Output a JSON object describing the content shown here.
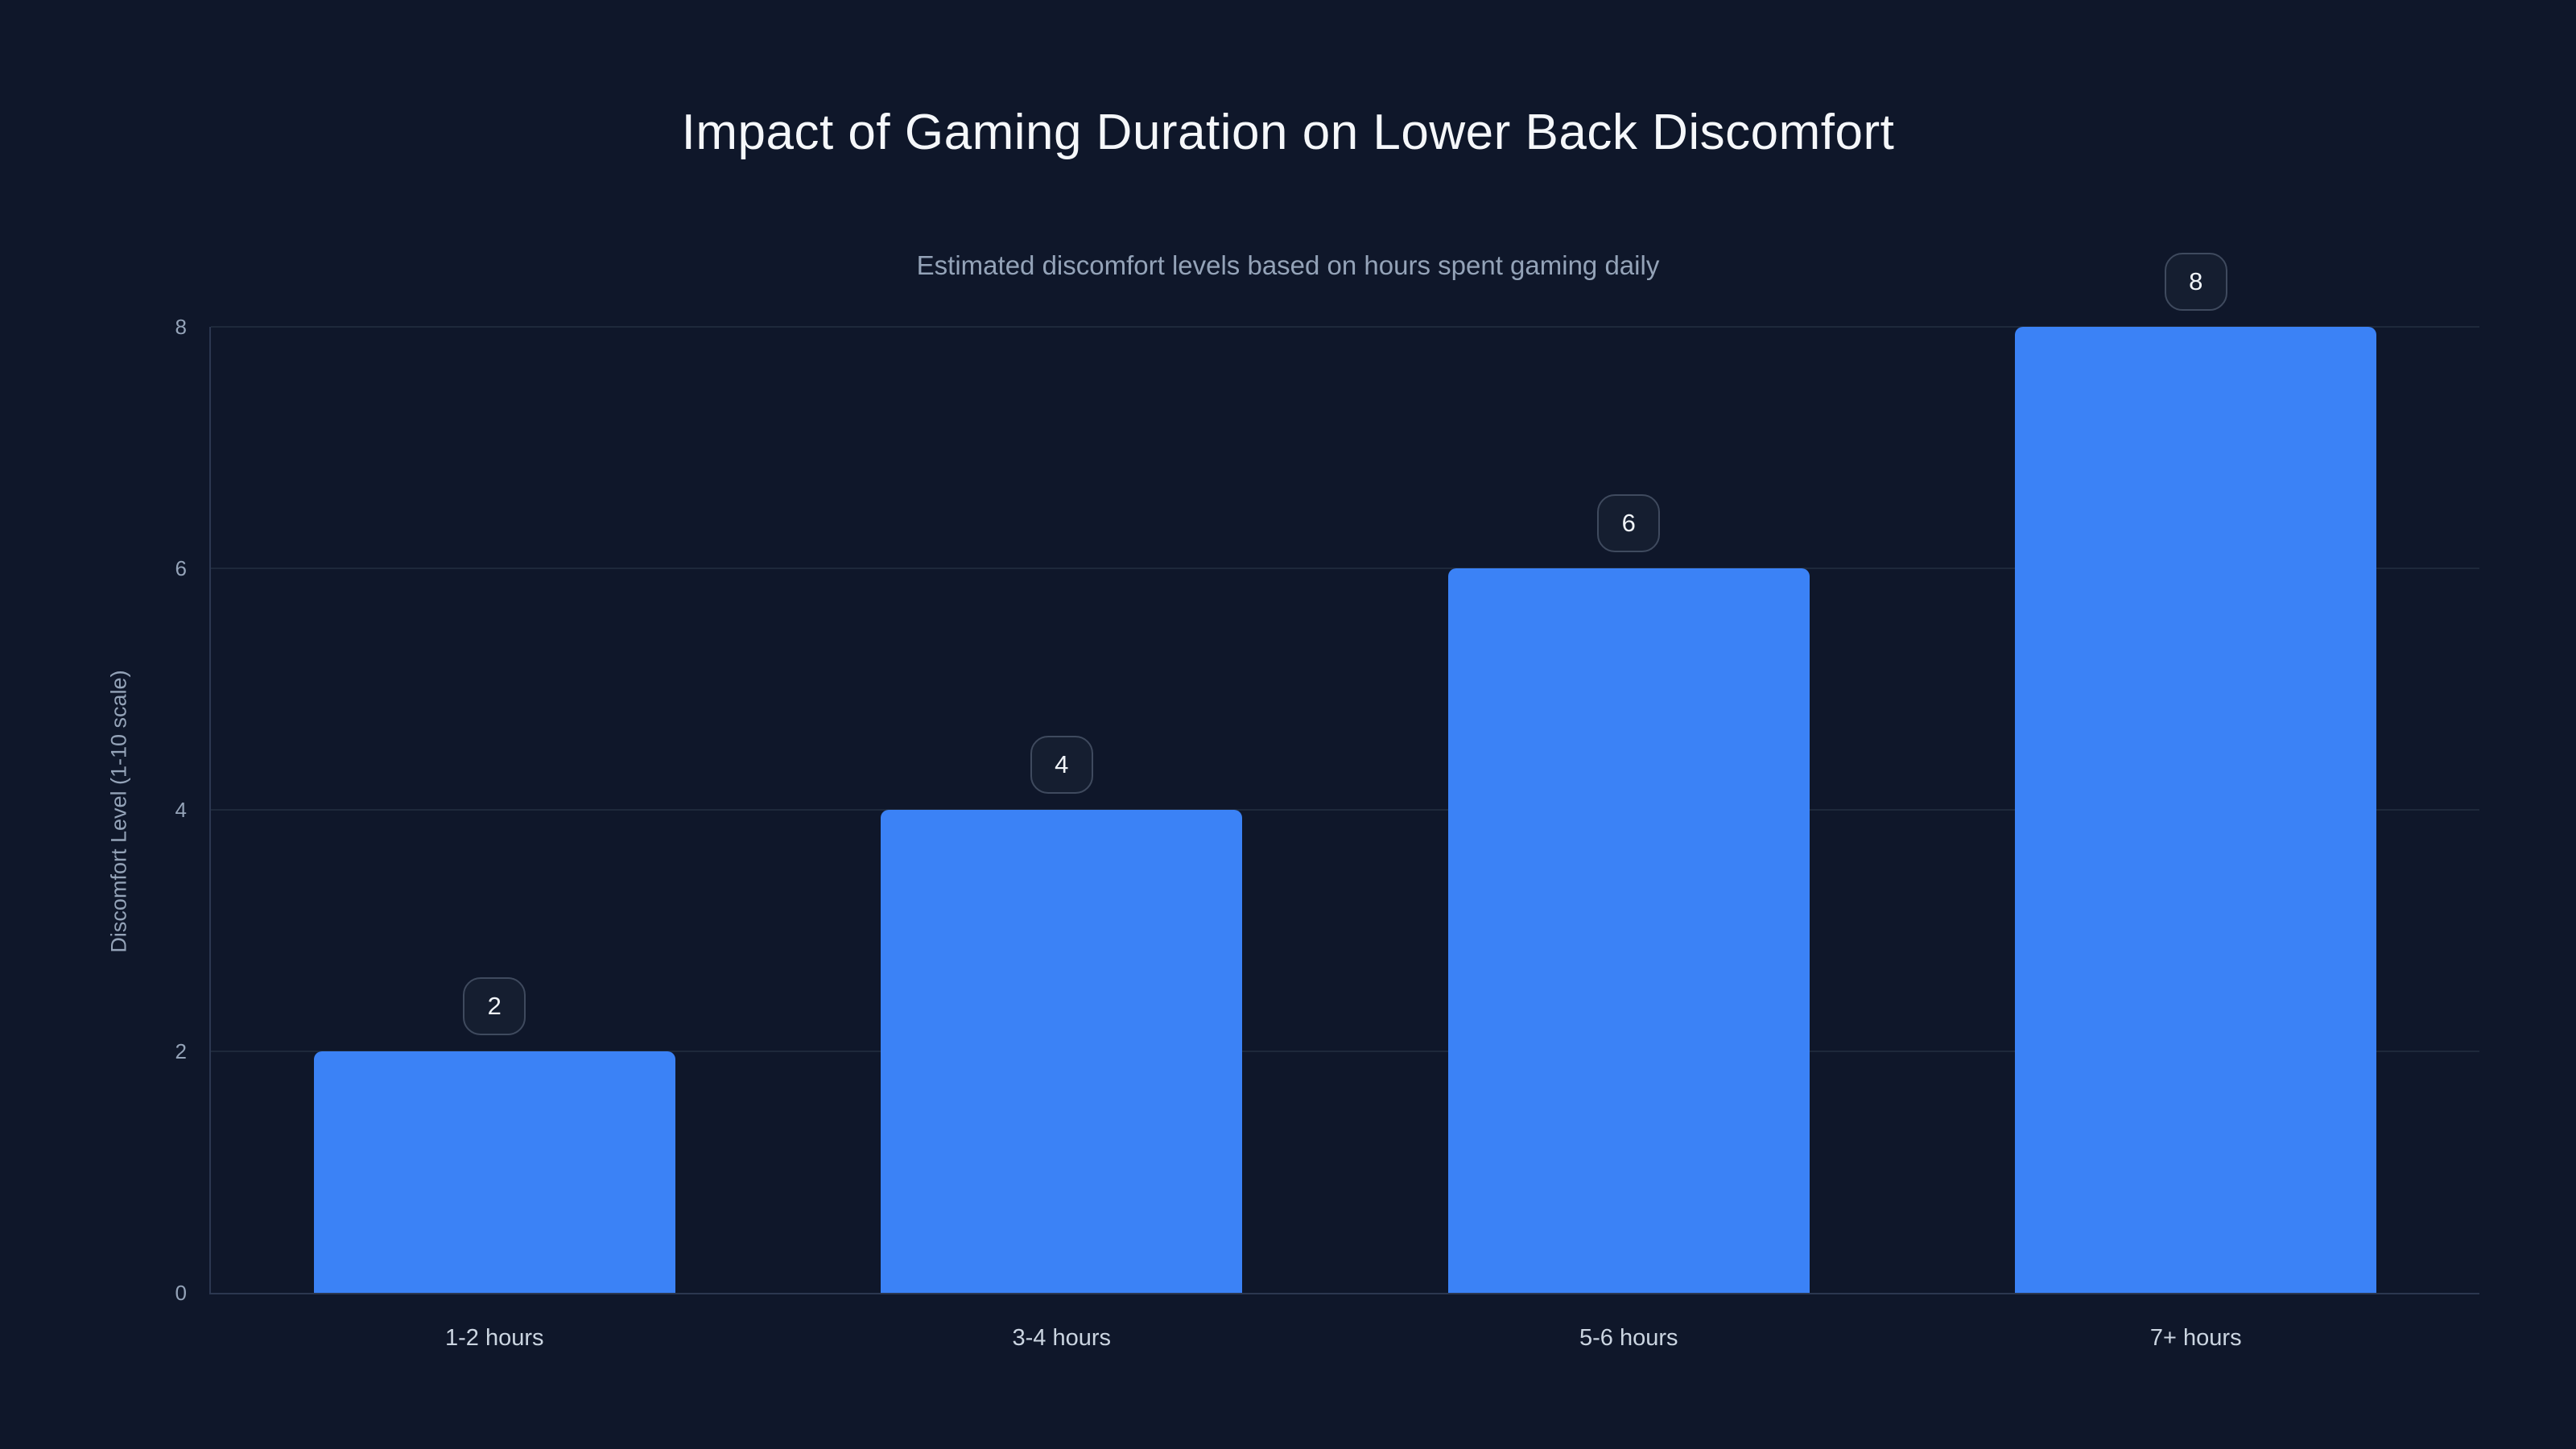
{
  "page": {
    "title": "Impact of Gaming Duration on Lower Back Discomfort",
    "subtitle": "Estimated discomfort levels based on hours spent gaming daily"
  },
  "colors": {
    "background": "#0f172a",
    "bar": "#3b82f6",
    "grid": "#1e293b",
    "axis": "#2b3750",
    "title_text": "#f5f7fa",
    "muted_text": "#94a3b8",
    "category_text": "#cbd5e1",
    "badge_border": "#3f4a5e",
    "badge_bg": "#151e30",
    "badge_text": "#f1f5f9"
  },
  "chart_data": {
    "type": "bar",
    "title": "Impact of Gaming Duration on Lower Back Discomfort",
    "subtitle": "Estimated discomfort levels based on hours spent gaming daily",
    "categories": [
      "1-2 hours",
      "3-4 hours",
      "5-6 hours",
      "7+ hours"
    ],
    "values": [
      2,
      4,
      6,
      8
    ],
    "value_labels": [
      "2",
      "4",
      "6",
      "8"
    ],
    "xlabel": "",
    "ylabel": "Discomfort Level (1-10 scale)",
    "ylim": [
      0,
      8
    ],
    "yticks": [
      0,
      2,
      4,
      6,
      8
    ],
    "grid": "horizontal-only",
    "legend": "none",
    "bar_color": "#3b82f6",
    "background_color": "#0f172a"
  }
}
